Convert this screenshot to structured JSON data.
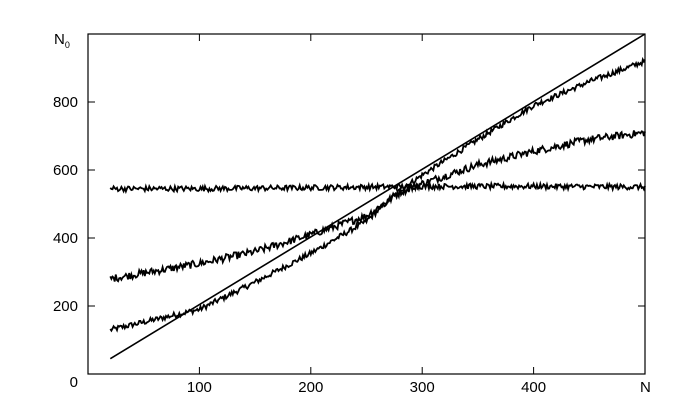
{
  "chart_data": {
    "type": "line",
    "title": "",
    "xlabel": "N",
    "ylabel": "N",
    "ylabel_subscript": "0",
    "xlim": [
      0,
      500
    ],
    "ylim": [
      0,
      1000
    ],
    "x_ticks": [
      100,
      200,
      300,
      400
    ],
    "y_ticks": [
      200,
      400,
      600,
      800
    ],
    "x_tick_labels": [
      "100",
      "200",
      "300",
      "400"
    ],
    "y_tick_labels": [
      "200",
      "400",
      "600",
      "800"
    ],
    "origin_label": "0",
    "grid": false,
    "legend": "none",
    "series": [
      {
        "x": [
          20,
          500
        ],
        "y": [
          45,
          1000
        ],
        "noise": 0
      },
      {
        "x": [
          20,
          100,
          150,
          200,
          250,
          280,
          300,
          350,
          400,
          450,
          500
        ],
        "y": [
          130,
          190,
          270,
          355,
          450,
          540,
          585,
          690,
          790,
          860,
          920
        ],
        "noise": 8
      },
      {
        "x": [
          20,
          100,
          150,
          200,
          250,
          280,
          300,
          350,
          400,
          450,
          500
        ],
        "y": [
          280,
          325,
          360,
          410,
          465,
          535,
          560,
          615,
          655,
          690,
          710
        ],
        "noise": 11
      },
      {
        "x": [
          20,
          100,
          200,
          300,
          400,
          500
        ],
        "y": [
          545,
          545,
          548,
          552,
          552,
          550
        ],
        "noise": 8
      }
    ]
  }
}
